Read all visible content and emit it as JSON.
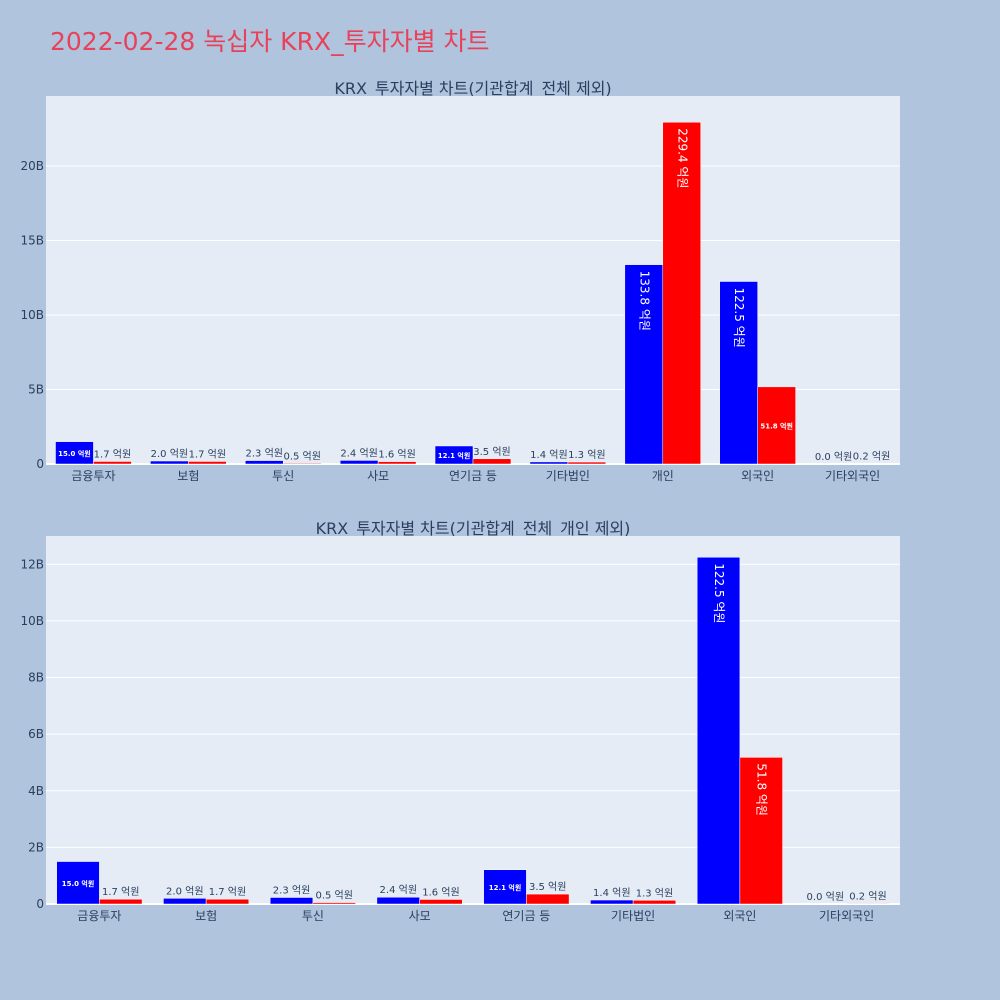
{
  "page": {
    "title": "2022-02-28 녹십자 KRX_투자자별 차트"
  },
  "colors": {
    "buy": "#0000ff",
    "sell": "#ff0000",
    "plot_bg": "#e5ecf6",
    "paper_bg": "#b0c4de",
    "title": "#e8425a"
  },
  "chart_data": [
    {
      "type": "bar",
      "title": "KRX_투자자별 차트(기관합계_전체 제외)",
      "categories": [
        "금융투자",
        "보험",
        "투신",
        "사모",
        "연기금 등",
        "기타법인",
        "개인",
        "외국인",
        "기타외국인"
      ],
      "ylim": [
        0,
        24700000000
      ],
      "yticks": [
        0,
        5000000000,
        10000000000,
        15000000000,
        20000000000
      ],
      "ytick_labels": [
        "0",
        "5B",
        "10B",
        "15B",
        "20B"
      ],
      "grid": true,
      "series": [
        {
          "color": "#0000ff",
          "values": [
            1500000000,
            200000000,
            230000000,
            240000000,
            1210000000,
            140000000,
            13380000000,
            12250000000,
            0
          ],
          "labels": [
            "15.0 억원",
            "2.0 억원",
            "2.3 억원",
            "2.4 억원",
            "12.1 억원",
            "1.4 억원",
            "133.8 억원",
            "122.5 억원",
            "0.0 억원"
          ]
        },
        {
          "color": "#ff0000",
          "values": [
            170000000,
            170000000,
            50000000,
            160000000,
            350000000,
            130000000,
            22940000000,
            5180000000,
            20000000
          ],
          "labels": [
            "1.7 억원",
            "1.7 억원",
            "0.5 억원",
            "1.6 억원",
            "3.5 억원",
            "1.3 억원",
            "229.4 억원",
            "51.8 억원",
            "0.2 억원"
          ]
        }
      ]
    },
    {
      "type": "bar",
      "title": "KRX_투자자별 차트(기관합계_전체_개인 제외)",
      "categories": [
        "금융투자",
        "보험",
        "투신",
        "사모",
        "연기금 등",
        "기타법인",
        "외국인",
        "기타외국인"
      ],
      "ylim": [
        0,
        13000000000
      ],
      "yticks": [
        0,
        2000000000,
        4000000000,
        6000000000,
        8000000000,
        10000000000,
        12000000000
      ],
      "ytick_labels": [
        "0",
        "2B",
        "4B",
        "6B",
        "8B",
        "10B",
        "12B"
      ],
      "grid": true,
      "series": [
        {
          "color": "#0000ff",
          "values": [
            1500000000,
            200000000,
            230000000,
            240000000,
            1210000000,
            140000000,
            12250000000,
            0
          ],
          "labels": [
            "15.0 억원",
            "2.0 억원",
            "2.3 억원",
            "2.4 억원",
            "12.1 억원",
            "1.4 억원",
            "122.5 억원",
            "0.0 억원"
          ]
        },
        {
          "color": "#ff0000",
          "values": [
            170000000,
            170000000,
            50000000,
            160000000,
            350000000,
            130000000,
            5180000000,
            20000000
          ],
          "labels": [
            "1.7 억원",
            "1.7 억원",
            "0.5 억원",
            "1.6 억원",
            "3.5 억원",
            "1.3 억원",
            "51.8 억원",
            "0.2 억원"
          ]
        }
      ]
    }
  ]
}
